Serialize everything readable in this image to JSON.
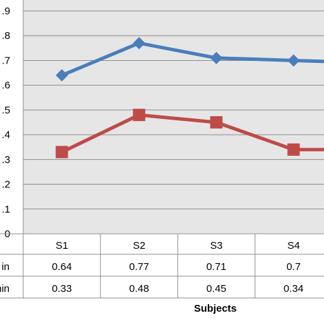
{
  "chart_data": {
    "type": "line",
    "categories": [
      "S1",
      "S2",
      "S3",
      "S4",
      ""
    ],
    "series": [
      {
        "name": "in",
        "color": "#4a7ebb",
        "marker": "diamond",
        "values": [
          0.64,
          0.77,
          0.71,
          0.7,
          0.69
        ]
      },
      {
        "name": "min",
        "color": "#be4b48",
        "marker": "square",
        "values": [
          0.33,
          0.48,
          0.45,
          0.34,
          0.34
        ]
      }
    ],
    "table_rows": [
      {
        "label": "in",
        "cells": [
          "0.64",
          "0.77",
          "0.71",
          "0.7",
          ""
        ]
      },
      {
        "label": "min",
        "cells": [
          "0.33",
          "0.48",
          "0.45",
          "0.34",
          ""
        ]
      }
    ],
    "y_ticks": [
      ".9",
      ".8",
      ".7",
      ".6",
      ".5",
      ".4",
      ".3",
      ".2",
      ".1",
      "0"
    ],
    "ylim": [
      0,
      0.9
    ],
    "xlabel": "Subjects",
    "ylabel": "",
    "title": "",
    "grid": true,
    "plot_background": "#e6e6e6",
    "gridline_color": "#8c8c8c"
  }
}
